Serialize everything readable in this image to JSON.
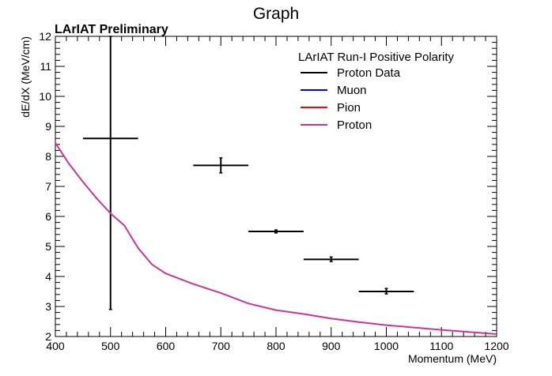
{
  "chart_data": {
    "type": "line",
    "title": "Graph",
    "annotation": "LArIAT Preliminary",
    "xlabel": "Momentum (MeV)",
    "ylabel": "dE/dX (MeV/cm)",
    "xlim": [
      400,
      1200
    ],
    "ylim": [
      2,
      12
    ],
    "x_ticks": [
      400,
      500,
      600,
      700,
      800,
      900,
      1000,
      1100,
      1200
    ],
    "y_ticks": [
      2,
      3,
      4,
      5,
      6,
      7,
      8,
      9,
      10,
      11,
      12
    ],
    "legend": {
      "title": "LArIAT Run-I Positive Polarity",
      "position": "top-right"
    },
    "series": [
      {
        "name": "Proton Data",
        "kind": "errorbar",
        "color": "#000000",
        "points": [
          {
            "x": 500,
            "y": 8.6,
            "xerr": 50,
            "ylow": 2.9,
            "yhigh": 12.0
          },
          {
            "x": 700,
            "y": 7.7,
            "xerr": 50,
            "ylow": 7.45,
            "yhigh": 7.95
          },
          {
            "x": 800,
            "y": 5.5,
            "xerr": 50,
            "ylow": 5.45,
            "yhigh": 5.55
          },
          {
            "x": 900,
            "y": 4.57,
            "xerr": 50,
            "ylow": 4.5,
            "yhigh": 4.65
          },
          {
            "x": 1000,
            "y": 3.5,
            "xerr": 50,
            "ylow": 3.42,
            "yhigh": 3.6
          }
        ]
      },
      {
        "name": "Muon",
        "kind": "line",
        "color": "#0000ff",
        "points": []
      },
      {
        "name": "Pion",
        "kind": "line",
        "color": "#ff0000",
        "points": []
      },
      {
        "name": "Proton",
        "kind": "line",
        "color": "#cc3399",
        "points": [
          {
            "x": 400,
            "y": 8.45
          },
          {
            "x": 425,
            "y": 7.75
          },
          {
            "x": 450,
            "y": 7.15
          },
          {
            "x": 475,
            "y": 6.6
          },
          {
            "x": 500,
            "y": 6.1
          },
          {
            "x": 525,
            "y": 5.7
          },
          {
            "x": 550,
            "y": 4.95
          },
          {
            "x": 575,
            "y": 4.4
          },
          {
            "x": 600,
            "y": 4.1
          },
          {
            "x": 650,
            "y": 3.75
          },
          {
            "x": 700,
            "y": 3.45
          },
          {
            "x": 750,
            "y": 3.1
          },
          {
            "x": 800,
            "y": 2.88
          },
          {
            "x": 850,
            "y": 2.75
          },
          {
            "x": 900,
            "y": 2.6
          },
          {
            "x": 950,
            "y": 2.48
          },
          {
            "x": 1000,
            "y": 2.38
          },
          {
            "x": 1050,
            "y": 2.3
          },
          {
            "x": 1100,
            "y": 2.22
          },
          {
            "x": 1150,
            "y": 2.15
          },
          {
            "x": 1200,
            "y": 2.08
          }
        ]
      }
    ]
  }
}
